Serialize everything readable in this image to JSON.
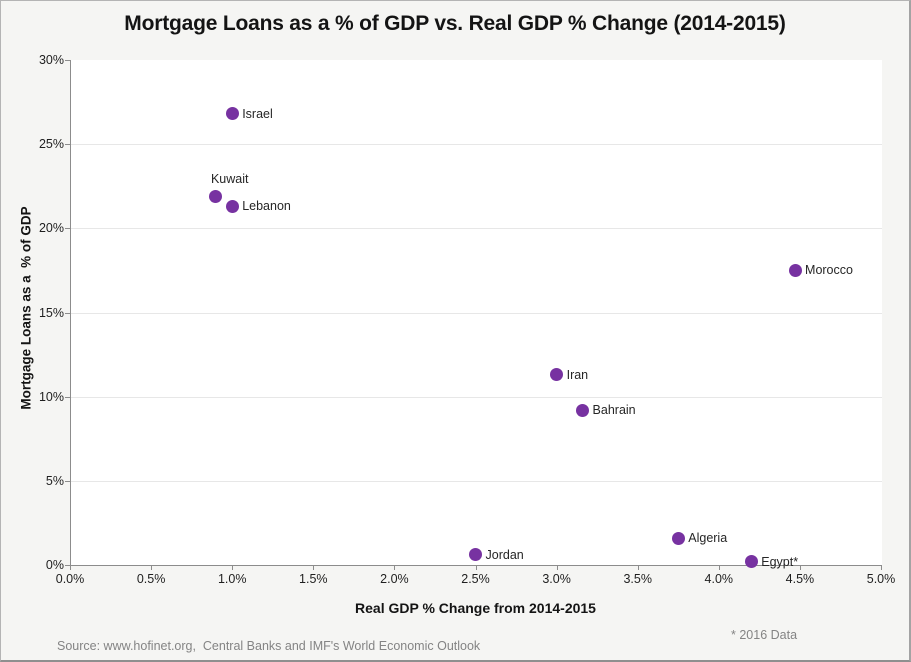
{
  "frame": {
    "footnote": "* 2016 Data",
    "source": "Source: www.hofinet.org,  Central Banks and IMF's World Economic Outlook"
  },
  "chart_data": {
    "type": "scatter",
    "title": "Mortgage Loans as a % of GDP vs. Real GDP % Change (2014-2015)",
    "xlabel": "Real GDP % Change from 2014-2015",
    "ylabel": "Mortgage Loans as a  % of GDP",
    "xlim": [
      0,
      5
    ],
    "ylim": [
      0,
      30
    ],
    "x_tick_values": [
      0,
      0.5,
      1,
      1.5,
      2,
      2.5,
      3,
      3.5,
      4,
      4.5,
      5
    ],
    "x_tick_labels": [
      "0.0%",
      "0.5%",
      "1.0%",
      "1.5%",
      "2.0%",
      "2.5%",
      "3.0%",
      "3.5%",
      "4.0%",
      "4.5%",
      "5.0%"
    ],
    "y_tick_values": [
      0,
      5,
      10,
      15,
      20,
      25,
      30
    ],
    "y_tick_labels": [
      "0%",
      "5%",
      "10%",
      "15%",
      "20%",
      "25%",
      "30%"
    ],
    "y_gridline_values": [
      5,
      10,
      15,
      20,
      25
    ],
    "grid": "horizontal-only",
    "legend": "none",
    "marker_color": "#7732a1",
    "points": [
      {
        "label": "Israel",
        "x": 1.0,
        "y": 26.8,
        "label_position": "right"
      },
      {
        "label": "Kuwait",
        "x": 0.9,
        "y": 21.9,
        "label_position": "above"
      },
      {
        "label": "Lebanon",
        "x": 1.0,
        "y": 21.3,
        "label_position": "right"
      },
      {
        "label": "Morocco",
        "x": 4.47,
        "y": 17.5,
        "label_position": "right"
      },
      {
        "label": "Iran",
        "x": 3.0,
        "y": 11.3,
        "label_position": "right"
      },
      {
        "label": "Bahrain",
        "x": 3.16,
        "y": 9.2,
        "label_position": "right"
      },
      {
        "label": "Jordan",
        "x": 2.5,
        "y": 0.6,
        "label_position": "right"
      },
      {
        "label": "Algeria",
        "x": 3.75,
        "y": 1.6,
        "label_position": "right"
      },
      {
        "label": "Egypt*",
        "x": 4.2,
        "y": 0.2,
        "label_position": "right"
      }
    ]
  }
}
